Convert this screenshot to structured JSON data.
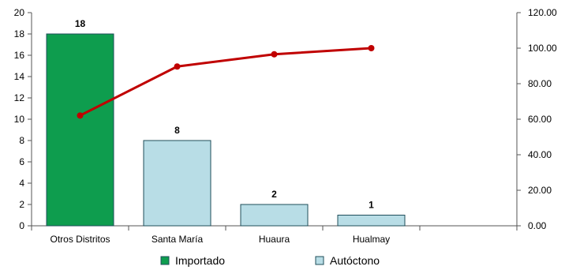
{
  "chart_data": {
    "type": "bar",
    "categories": [
      "Otros Distritos",
      "Santa María",
      "Huaura",
      "Hualmay",
      ""
    ],
    "series": [
      {
        "name": "Importado",
        "values": [
          18,
          null,
          null,
          null,
          null
        ],
        "color": "#0e9d4e"
      },
      {
        "name": "Autóctono",
        "values": [
          null,
          8,
          2,
          1,
          null
        ],
        "color": "#b8dde6"
      }
    ],
    "data_labels": [
      "18",
      "8",
      "2",
      "1",
      ""
    ],
    "line_series": {
      "values": [
        62.07,
        89.66,
        96.55,
        100.0
      ],
      "axis": "right",
      "color": "#c00000"
    },
    "y_left": {
      "min": 0,
      "max": 20,
      "ticks": [
        "0",
        "2",
        "4",
        "6",
        "8",
        "10",
        "12",
        "14",
        "16",
        "18",
        "20"
      ]
    },
    "y_right": {
      "min": 0,
      "max": 120,
      "ticks": [
        "0.00",
        "20.00",
        "40.00",
        "60.00",
        "80.00",
        "100.00",
        "120.00"
      ]
    },
    "grid": false,
    "legend_position": "bottom"
  }
}
